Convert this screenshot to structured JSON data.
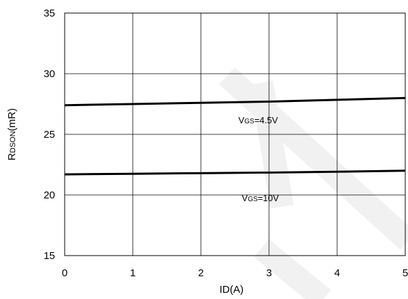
{
  "chart_data": {
    "type": "line",
    "xlabel": "ID(A)",
    "ylabel": {
      "main": "R",
      "sub": "DSON",
      "rest": "(mR)"
    },
    "xlim": [
      0,
      5
    ],
    "ylim": [
      15,
      35
    ],
    "xticks": [
      "0",
      "1",
      "2",
      "3",
      "4",
      "5"
    ],
    "yticks": [
      "15",
      "20",
      "25",
      "30",
      "35"
    ],
    "grid": true,
    "series": [
      {
        "x": [
          0,
          1,
          2,
          3,
          4,
          5
        ],
        "y": [
          27.4,
          27.5,
          27.6,
          27.7,
          27.85,
          28.0
        ]
      },
      {
        "x": [
          0,
          1,
          2,
          3,
          4,
          5
        ],
        "y": [
          21.7,
          21.75,
          21.8,
          21.85,
          21.92,
          22.0
        ]
      }
    ],
    "annotations": [
      {
        "main": "V",
        "sub": "GS",
        "rest": "=4.5V",
        "x": 2.55,
        "y": 25.9
      },
      {
        "main": "V",
        "sub": "GS",
        "rest": "=10V",
        "x": 2.6,
        "y": 19.5
      }
    ],
    "line_color": "#000000",
    "grid_color": "#000000",
    "watermark_color": "#f1f1f1"
  }
}
